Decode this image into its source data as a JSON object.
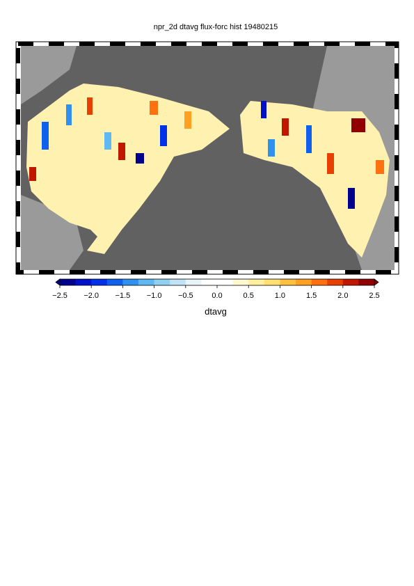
{
  "title": "npr_2d dtavg flux-forc hist 19480215",
  "colorbar": {
    "label": "dtavg",
    "range": [
      -2.5,
      2.5
    ],
    "ticks": [
      {
        "value": -2.5,
        "label": "−2.5"
      },
      {
        "value": -2.0,
        "label": "−2.0"
      },
      {
        "value": -1.5,
        "label": "−1.5"
      },
      {
        "value": -1.0,
        "label": "−1.0"
      },
      {
        "value": -0.5,
        "label": "−0.5"
      },
      {
        "value": 0.0,
        "label": "0.0"
      },
      {
        "value": 0.5,
        "label": "0.5"
      },
      {
        "value": 1.0,
        "label": "1.0"
      },
      {
        "value": 1.5,
        "label": "1.5"
      },
      {
        "value": 2.0,
        "label": "2.0"
      },
      {
        "value": 2.5,
        "label": "2.5"
      }
    ],
    "colors": [
      "#00008f",
      "#0010c8",
      "#0030e8",
      "#1060f0",
      "#3090f0",
      "#60b8f0",
      "#90d0f0",
      "#c0e4f5",
      "#e8f4fa",
      "#ffffff",
      "#ffffff",
      "#fff8d0",
      "#fff0a0",
      "#ffe070",
      "#ffc040",
      "#ffa020",
      "#ff7010",
      "#e84000",
      "#c01800",
      "#900000"
    ]
  }
}
